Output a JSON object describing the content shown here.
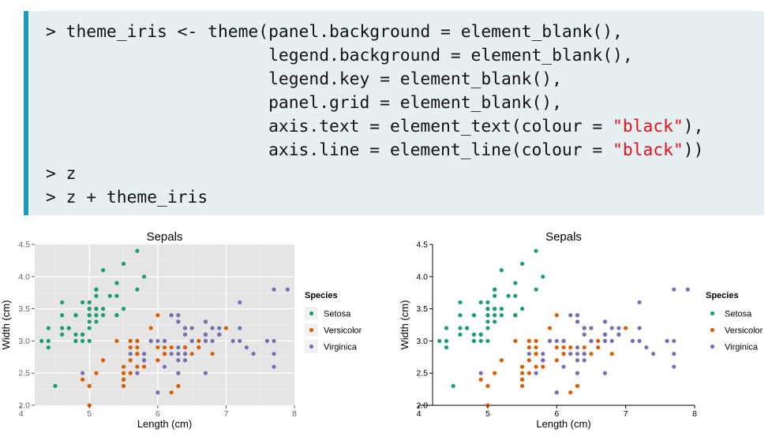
{
  "code": {
    "lines": [
      {
        "pre": "> theme_iris <- theme(panel.background = element_blank(),",
        "str": "",
        "post": ""
      },
      {
        "pre": "                      legend.background = element_blank(),",
        "str": "",
        "post": ""
      },
      {
        "pre": "                      legend.key = element_blank(),",
        "str": "",
        "post": ""
      },
      {
        "pre": "                      panel.grid = element_blank(),",
        "str": "",
        "post": ""
      },
      {
        "pre": "                      axis.text = element_text(colour = ",
        "str": "\"black\"",
        "post": "),"
      },
      {
        "pre": "                      axis.line = element_line(colour = ",
        "str": "\"black\"",
        "post": "))"
      },
      {
        "pre": "> z",
        "str": "",
        "post": ""
      },
      {
        "pre": "> z + theme_iris",
        "str": "",
        "post": ""
      }
    ]
  },
  "colors": {
    "code_bg": "#e6f0f2",
    "code_border": "#1f9bc0",
    "string": "#e8101b",
    "panel_bg": "#e5e5e5",
    "setosa": "#1b9e77",
    "versicolor": "#d95f02",
    "virginica": "#7570b3"
  },
  "chart_data": [
    {
      "type": "scatter",
      "title": "Sepals",
      "xlabel": "Length (cm)",
      "ylabel": "Width (cm)",
      "xlim": [
        4.2,
        8.0
      ],
      "ylim": [
        2.0,
        4.5
      ],
      "x_ticks": [
        4,
        5,
        6,
        7,
        8
      ],
      "y_ticks": [
        "2.0",
        "2.5",
        "3.0",
        "3.5",
        "4.0",
        "4.5"
      ],
      "grid": true,
      "panel_background": "grey",
      "legend": {
        "title": "Species",
        "position": "right"
      },
      "series_ref": "iris"
    },
    {
      "type": "scatter",
      "title": "Sepals",
      "xlabel": "Length (cm)",
      "ylabel": "Width (cm)",
      "xlim": [
        4.2,
        8.0
      ],
      "ylim": [
        2.0,
        4.5
      ],
      "x_ticks": [
        4,
        5,
        6,
        7,
        8
      ],
      "y_ticks": [
        "2.0",
        "2.5",
        "3.0",
        "3.5",
        "4.0",
        "4.5"
      ],
      "grid": false,
      "panel_background": "blank",
      "legend": {
        "title": "Species",
        "position": "right"
      },
      "series_ref": "iris"
    }
  ],
  "iris": {
    "series": [
      {
        "name": "Setosa",
        "color_key": "setosa",
        "points": [
          [
            5.1,
            3.5
          ],
          [
            4.9,
            3.0
          ],
          [
            4.7,
            3.2
          ],
          [
            4.6,
            3.1
          ],
          [
            5.0,
            3.6
          ],
          [
            5.4,
            3.9
          ],
          [
            4.6,
            3.4
          ],
          [
            5.0,
            3.4
          ],
          [
            4.4,
            2.9
          ],
          [
            4.9,
            3.1
          ],
          [
            5.4,
            3.7
          ],
          [
            4.8,
            3.4
          ],
          [
            4.8,
            3.0
          ],
          [
            4.3,
            3.0
          ],
          [
            5.8,
            4.0
          ],
          [
            5.7,
            4.4
          ],
          [
            5.4,
            3.9
          ],
          [
            5.1,
            3.5
          ],
          [
            5.7,
            3.8
          ],
          [
            5.1,
            3.8
          ],
          [
            5.4,
            3.4
          ],
          [
            5.1,
            3.7
          ],
          [
            4.6,
            3.6
          ],
          [
            5.1,
            3.3
          ],
          [
            4.8,
            3.4
          ],
          [
            5.0,
            3.0
          ],
          [
            5.0,
            3.4
          ],
          [
            5.2,
            3.5
          ],
          [
            5.2,
            3.4
          ],
          [
            4.7,
            3.2
          ],
          [
            4.8,
            3.1
          ],
          [
            5.4,
            3.4
          ],
          [
            5.2,
            4.1
          ],
          [
            5.5,
            4.2
          ],
          [
            4.9,
            3.1
          ],
          [
            5.0,
            3.2
          ],
          [
            5.5,
            3.5
          ],
          [
            4.9,
            3.6
          ],
          [
            4.4,
            3.0
          ],
          [
            5.1,
            3.4
          ],
          [
            5.0,
            3.5
          ],
          [
            4.5,
            2.3
          ],
          [
            4.4,
            3.2
          ],
          [
            5.0,
            3.5
          ],
          [
            5.1,
            3.8
          ],
          [
            4.8,
            3.0
          ],
          [
            5.1,
            3.8
          ],
          [
            4.6,
            3.2
          ],
          [
            5.3,
            3.7
          ],
          [
            5.0,
            3.3
          ]
        ]
      },
      {
        "name": "Versicolor",
        "color_key": "versicolor",
        "points": [
          [
            7.0,
            3.2
          ],
          [
            6.4,
            3.2
          ],
          [
            6.9,
            3.1
          ],
          [
            5.5,
            2.3
          ],
          [
            6.5,
            2.8
          ],
          [
            5.7,
            2.8
          ],
          [
            6.3,
            3.3
          ],
          [
            4.9,
            2.4
          ],
          [
            6.6,
            2.9
          ],
          [
            5.2,
            2.7
          ],
          [
            5.0,
            2.0
          ],
          [
            5.9,
            3.0
          ],
          [
            6.0,
            2.2
          ],
          [
            6.1,
            2.9
          ],
          [
            5.6,
            2.9
          ],
          [
            6.7,
            3.1
          ],
          [
            5.6,
            3.0
          ],
          [
            5.8,
            2.7
          ],
          [
            6.2,
            2.2
          ],
          [
            5.6,
            2.5
          ],
          [
            5.9,
            3.2
          ],
          [
            6.1,
            2.8
          ],
          [
            6.3,
            2.5
          ],
          [
            6.1,
            2.8
          ],
          [
            6.4,
            2.9
          ],
          [
            6.6,
            3.0
          ],
          [
            6.8,
            2.8
          ],
          [
            6.7,
            3.0
          ],
          [
            6.0,
            2.9
          ],
          [
            5.7,
            2.6
          ],
          [
            5.5,
            2.4
          ],
          [
            5.5,
            2.4
          ],
          [
            5.8,
            2.7
          ],
          [
            6.0,
            2.7
          ],
          [
            5.4,
            3.0
          ],
          [
            6.0,
            3.4
          ],
          [
            6.7,
            3.1
          ],
          [
            6.3,
            2.3
          ],
          [
            5.6,
            3.0
          ],
          [
            5.5,
            2.5
          ],
          [
            5.5,
            2.6
          ],
          [
            6.1,
            3.0
          ],
          [
            5.8,
            2.6
          ],
          [
            5.0,
            2.3
          ],
          [
            5.6,
            2.7
          ],
          [
            5.7,
            3.0
          ],
          [
            5.7,
            2.9
          ],
          [
            6.2,
            2.9
          ],
          [
            5.1,
            2.5
          ],
          [
            5.7,
            2.8
          ]
        ]
      },
      {
        "name": "Virginica",
        "color_key": "virginica",
        "points": [
          [
            6.3,
            3.3
          ],
          [
            5.8,
            2.7
          ],
          [
            7.1,
            3.0
          ],
          [
            6.3,
            2.9
          ],
          [
            6.5,
            3.0
          ],
          [
            7.6,
            3.0
          ],
          [
            4.9,
            2.5
          ],
          [
            7.3,
            2.9
          ],
          [
            6.7,
            2.5
          ],
          [
            7.2,
            3.6
          ],
          [
            6.5,
            3.2
          ],
          [
            6.4,
            2.7
          ],
          [
            6.8,
            3.0
          ],
          [
            5.7,
            2.5
          ],
          [
            5.8,
            2.8
          ],
          [
            6.4,
            3.2
          ],
          [
            6.5,
            3.0
          ],
          [
            7.7,
            3.8
          ],
          [
            7.7,
            2.6
          ],
          [
            6.0,
            2.2
          ],
          [
            6.9,
            3.2
          ],
          [
            5.6,
            2.8
          ],
          [
            7.7,
            2.8
          ],
          [
            6.3,
            2.7
          ],
          [
            6.7,
            3.3
          ],
          [
            7.2,
            3.2
          ],
          [
            6.2,
            2.8
          ],
          [
            6.1,
            3.0
          ],
          [
            6.4,
            2.8
          ],
          [
            7.2,
            3.0
          ],
          [
            7.4,
            2.8
          ],
          [
            7.9,
            3.8
          ],
          [
            6.4,
            2.8
          ],
          [
            6.3,
            2.8
          ],
          [
            6.1,
            2.6
          ],
          [
            7.7,
            3.0
          ],
          [
            6.3,
            3.4
          ],
          [
            6.4,
            3.1
          ],
          [
            6.0,
            3.0
          ],
          [
            6.9,
            3.1
          ],
          [
            6.7,
            3.1
          ],
          [
            6.9,
            3.1
          ],
          [
            5.8,
            2.7
          ],
          [
            6.8,
            3.2
          ],
          [
            6.7,
            3.3
          ],
          [
            6.7,
            3.0
          ],
          [
            6.3,
            2.5
          ],
          [
            6.5,
            3.0
          ],
          [
            6.2,
            3.4
          ],
          [
            5.9,
            3.0
          ]
        ]
      }
    ]
  }
}
